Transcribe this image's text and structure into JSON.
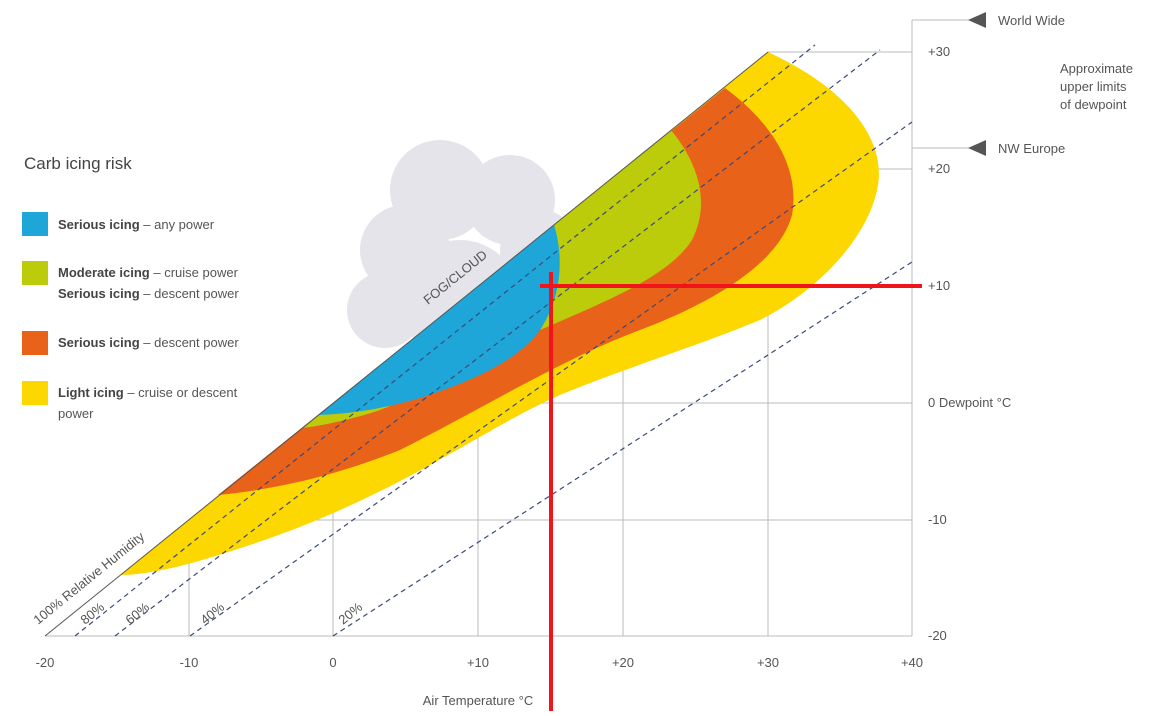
{
  "legend": {
    "title": "Carb icing risk",
    "items": [
      {
        "lines": [
          {
            "strong": "Serious icing",
            "text": "– any power"
          }
        ]
      },
      {
        "lines": [
          {
            "strong": "Moderate icing",
            "text": "– cruise power"
          },
          {
            "strong": "Serious icing",
            "text": "– descent power"
          }
        ]
      },
      {
        "lines": [
          {
            "strong": "Serious icing",
            "text": "– descent power"
          }
        ]
      },
      {
        "lines": [
          {
            "strong": "Light icing",
            "text": "– cruise or descent"
          },
          {
            "text": "power"
          }
        ]
      }
    ]
  },
  "x_axis": {
    "label": "Air Temperature °C",
    "ticks": [
      "-20",
      "-10",
      "0",
      "+10",
      "+20",
      "+30",
      "+40"
    ]
  },
  "y_axis": {
    "ticks": [
      "-20",
      "-10",
      "0 Dewpoint °C",
      "+10",
      "+20",
      "+30"
    ]
  },
  "annotations": {
    "world_wide": "World Wide",
    "nw_europe": "NW Europe",
    "upper_limits": [
      "Approximate",
      "upper limits",
      "of dewpoint"
    ],
    "fog_cloud": "FOG/CLOUD",
    "relative_humidity": "100% Relative Humidity",
    "humidity_lines": [
      "80%",
      "60%",
      "40%",
      "20%"
    ]
  }
}
